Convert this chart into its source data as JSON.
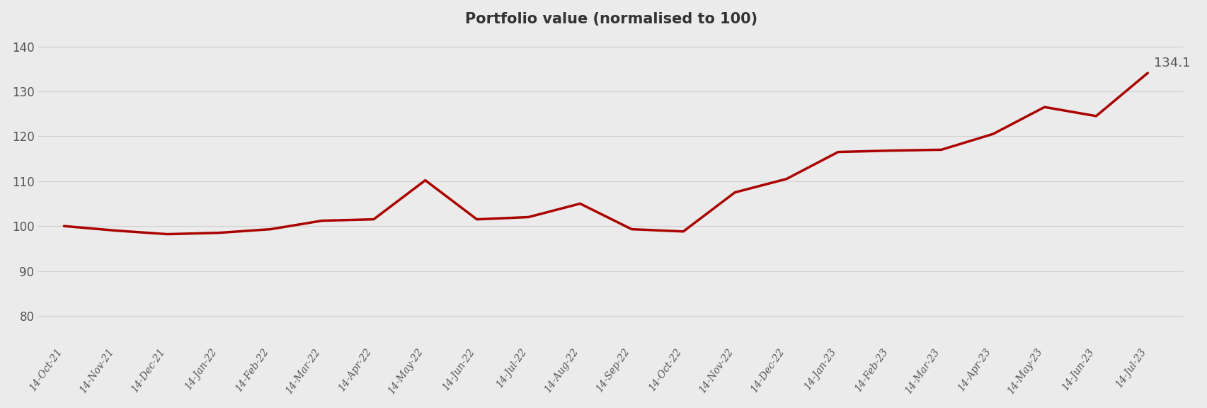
{
  "title": "Portfolio value (normalised to 100)",
  "line_color": "#aa0000",
  "line_width": 2.5,
  "background_color": "#ebebeb",
  "plot_bg_color": "#ebebeb",
  "ylim": [
    74,
    143
  ],
  "yticks": [
    80,
    90,
    100,
    110,
    120,
    130,
    140
  ],
  "annotation_text": "134.1",
  "annotation_value": 134.1,
  "x_labels": [
    "14-Oct-21",
    "14-Nov-21",
    "14-Dec-21",
    "14-Jan-22",
    "14-Feb-22",
    "14-Mar-22",
    "14-Apr-22",
    "14-May-22",
    "14-Jun-22",
    "14-Jul-22",
    "14-Aug-22",
    "14-Sep-22",
    "14-Oct-22",
    "14-Nov-22",
    "14-Dec-22",
    "14-Jan-23",
    "14-Feb-23",
    "14-Mar-23",
    "14-Apr-23",
    "14-May-23",
    "14-Jun-23",
    "14-Jul-23"
  ],
  "y_values": [
    100.0,
    99.0,
    98.2,
    98.5,
    99.3,
    101.2,
    101.5,
    110.2,
    101.5,
    102.0,
    105.0,
    99.3,
    98.8,
    107.5,
    110.5,
    116.5,
    116.8,
    117.0,
    120.5,
    126.5,
    124.5,
    134.1
  ],
  "title_fontsize": 15,
  "tick_fontsize": 10,
  "annot_fontsize": 13,
  "title_color": "#333333",
  "tick_color": "#555555",
  "grid_color": "#d0d0d0",
  "xlabel_rotation": 55
}
